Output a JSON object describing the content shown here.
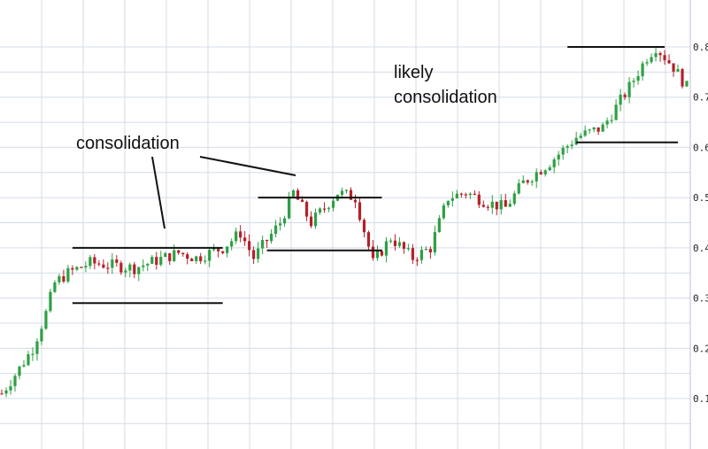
{
  "chart_data": {
    "type": "candlestick",
    "title": "",
    "xlabel": "",
    "ylabel": "",
    "ylim": [
      0.05,
      0.82
    ],
    "grid": true,
    "y_tick_labels": [
      "0.1",
      "0.2",
      "0.3",
      "0.4",
      "0.5",
      "0.6",
      "0.7",
      "0.8"
    ],
    "colors": {
      "up": "#2ea043",
      "down": "#b5202a",
      "grid": "#d4dbe8",
      "line": "#111111",
      "text": "#111111"
    },
    "price_path": [
      [
        0,
        0.11
      ],
      [
        4,
        0.16
      ],
      [
        7,
        0.2
      ],
      [
        10,
        0.27
      ],
      [
        12,
        0.33
      ],
      [
        15,
        0.35
      ],
      [
        20,
        0.37
      ],
      [
        30,
        0.36
      ],
      [
        40,
        0.39
      ],
      [
        44,
        0.38
      ],
      [
        50,
        0.4
      ],
      [
        54,
        0.43
      ],
      [
        57,
        0.38
      ],
      [
        63,
        0.45
      ],
      [
        66,
        0.51
      ],
      [
        70,
        0.45
      ],
      [
        76,
        0.51
      ],
      [
        80,
        0.5
      ],
      [
        84,
        0.37
      ],
      [
        88,
        0.42
      ],
      [
        93,
        0.38
      ],
      [
        97,
        0.4
      ],
      [
        101,
        0.5
      ],
      [
        105,
        0.51
      ],
      [
        110,
        0.49
      ],
      [
        114,
        0.48
      ],
      [
        118,
        0.53
      ],
      [
        124,
        0.57
      ],
      [
        130,
        0.62
      ],
      [
        136,
        0.64
      ],
      [
        142,
        0.72
      ],
      [
        146,
        0.78
      ],
      [
        148,
        0.8
      ],
      [
        152,
        0.76
      ],
      [
        155,
        0.72
      ]
    ],
    "levels": [
      {
        "x": [
          16,
          50
        ],
        "y": 0.4
      },
      {
        "x": [
          16,
          50
        ],
        "y": 0.29
      },
      {
        "x": [
          58,
          86
        ],
        "y": 0.5
      },
      {
        "x": [
          60,
          86
        ],
        "y": 0.395
      },
      {
        "x": [
          128,
          150
        ],
        "y": 0.8
      },
      {
        "x": [
          130,
          153
        ],
        "y": 0.61
      }
    ],
    "annotations": [
      {
        "id": "consolidation",
        "lines": [
          "consolidation"
        ]
      },
      {
        "id": "likely",
        "lines": [
          "likely",
          "consolidation"
        ]
      }
    ]
  }
}
